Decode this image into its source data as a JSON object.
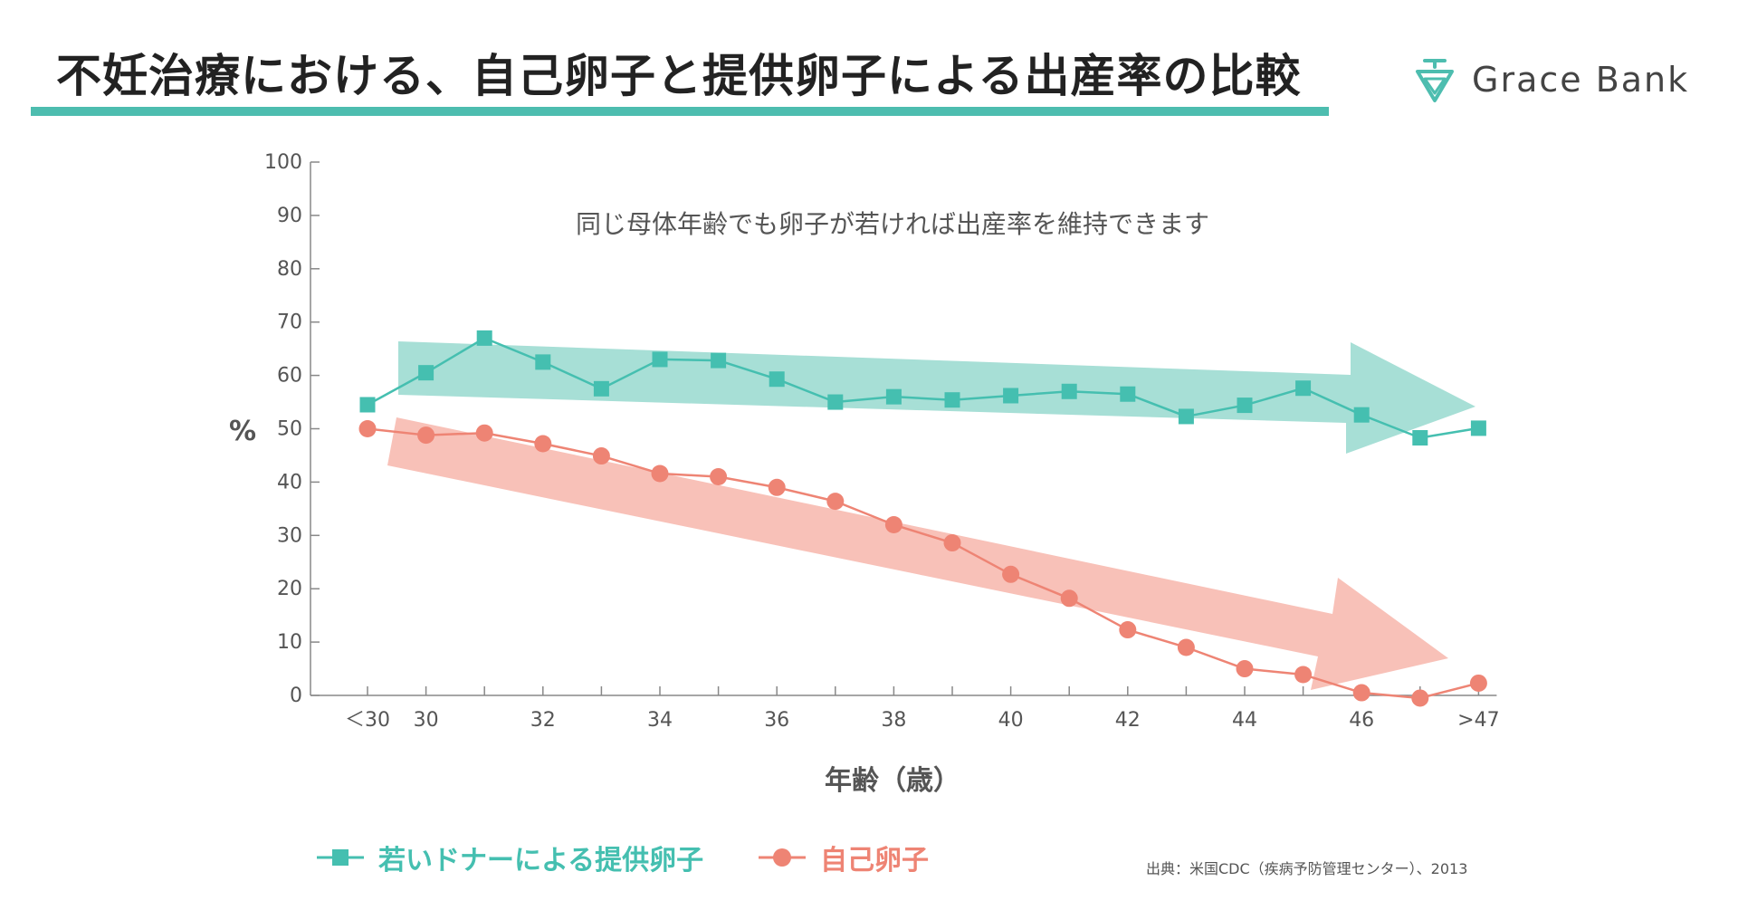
{
  "header": {
    "title": "不妊治療における、自己卵子と提供卵子による出産率の比較",
    "logo_text": "Grace Bank"
  },
  "colors": {
    "accent": "#4dbdaf",
    "donor": "#45bfb0",
    "donor_band": "#a7dfd6",
    "own": "#ee8474",
    "own_band": "#f8c1b8",
    "axis": "#888888",
    "text": "#555555"
  },
  "chart_data": {
    "type": "line",
    "annotation": "同じ母体年齢でも卵子が若ければ出産率を維持できます",
    "ylabel": "%",
    "xlabel": "年齢（歳）",
    "ylim": [
      0,
      100
    ],
    "yticks": [
      0,
      10,
      20,
      30,
      40,
      50,
      60,
      70,
      80,
      90,
      100
    ],
    "categories": [
      "<30",
      "30",
      "31",
      "32",
      "33",
      "34",
      "35",
      "36",
      "37",
      "38",
      "39",
      "40",
      "41",
      "42",
      "43",
      "44",
      "45",
      "46",
      "47",
      ">47"
    ],
    "tick_labels": [
      "＜30",
      "30",
      "",
      "32",
      "",
      "34",
      "",
      "36",
      "",
      "38",
      "",
      "40",
      "",
      "42",
      "",
      "44",
      "",
      "46",
      "",
      ">47"
    ],
    "series": [
      {
        "name": "若いドナーによる提供卵子",
        "marker": "square",
        "values": [
          54.5,
          60.5,
          67,
          62.5,
          57.5,
          63,
          62.8,
          59.3,
          55,
          56,
          55.4,
          56.2,
          57,
          56.5,
          52.3,
          54.4,
          57.6,
          52.6,
          48.3,
          50.1
        ]
      },
      {
        "name": "自己卵子",
        "marker": "circle",
        "values": [
          50,
          48.8,
          49.2,
          47.2,
          44.9,
          41.6,
          41,
          39,
          36.4,
          32,
          28.6,
          22.7,
          18.2,
          12.3,
          9,
          5,
          3.9,
          0.5,
          -0.5,
          2.3
        ]
      }
    ]
  },
  "legend": {
    "donor_label": "若いドナーによる提供卵子",
    "own_label": "自己卵子"
  },
  "source": "出典：米国CDC（疾病予防管理センター）、2013"
}
